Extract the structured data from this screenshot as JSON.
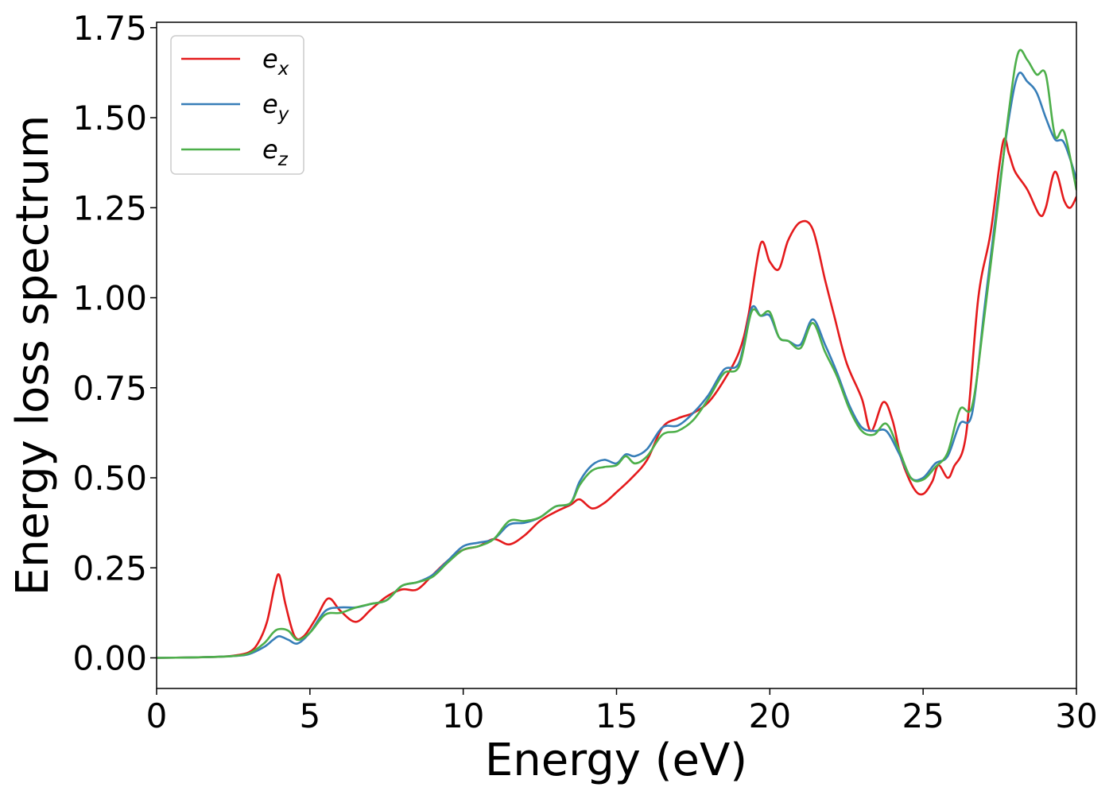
{
  "chart_data": {
    "type": "line",
    "xlabel": "Energy (eV)",
    "ylabel": "Energy loss spectrum",
    "xlim": [
      0,
      30
    ],
    "ylim": [
      -0.085,
      1.765
    ],
    "xticks": [
      0,
      5,
      10,
      15,
      20,
      25,
      30
    ],
    "yticks": [
      0.0,
      0.25,
      0.5,
      0.75,
      1.0,
      1.25,
      1.5,
      1.75
    ],
    "xtick_labels": [
      "0",
      "5",
      "10",
      "15",
      "20",
      "25",
      "30"
    ],
    "ytick_labels": [
      "0.00",
      "0.25",
      "0.50",
      "0.75",
      "1.00",
      "1.25",
      "1.50",
      "1.75"
    ],
    "grid": false,
    "legend_position": "top-left",
    "series": [
      {
        "name": "e_x",
        "label_base": "e",
        "label_sub": "x",
        "color": "#e41a1c",
        "x": [
          0,
          1,
          2,
          2.5,
          3,
          3.3,
          3.6,
          3.85,
          4.0,
          4.2,
          4.5,
          4.8,
          5.2,
          5.6,
          6.0,
          6.5,
          7.0,
          7.5,
          8.0,
          8.5,
          9.0,
          9.5,
          10.0,
          10.5,
          11.0,
          11.5,
          12.0,
          12.5,
          13.0,
          13.5,
          13.8,
          14.2,
          14.6,
          15.0,
          15.5,
          16.0,
          16.5,
          17.0,
          17.5,
          18.0,
          18.5,
          19.0,
          19.3,
          19.7,
          20.0,
          20.3,
          20.6,
          21.0,
          21.4,
          21.8,
          22.1,
          22.5,
          23.0,
          23.3,
          23.7,
          24.0,
          24.3,
          24.7,
          25.0,
          25.3,
          25.5,
          25.8,
          26.0,
          26.4,
          26.8,
          27.2,
          27.6,
          27.8,
          28.0,
          28.4,
          28.8,
          29.0,
          29.3,
          29.6,
          29.8,
          30.0
        ],
        "y": [
          0.0,
          0.001,
          0.003,
          0.006,
          0.015,
          0.04,
          0.1,
          0.2,
          0.23,
          0.15,
          0.06,
          0.06,
          0.11,
          0.165,
          0.13,
          0.1,
          0.135,
          0.17,
          0.19,
          0.19,
          0.23,
          0.27,
          0.3,
          0.31,
          0.33,
          0.315,
          0.34,
          0.38,
          0.405,
          0.425,
          0.44,
          0.415,
          0.43,
          0.46,
          0.5,
          0.55,
          0.64,
          0.665,
          0.68,
          0.71,
          0.77,
          0.85,
          0.95,
          1.15,
          1.1,
          1.08,
          1.16,
          1.21,
          1.19,
          1.05,
          0.95,
          0.82,
          0.72,
          0.63,
          0.71,
          0.66,
          0.55,
          0.47,
          0.455,
          0.49,
          0.535,
          0.5,
          0.53,
          0.62,
          1.0,
          1.18,
          1.43,
          1.4,
          1.35,
          1.3,
          1.23,
          1.25,
          1.35,
          1.27,
          1.25,
          1.28
        ]
      },
      {
        "name": "e_y",
        "label_base": "e",
        "label_sub": "y",
        "color": "#377eb8",
        "x": [
          0,
          1,
          2,
          2.5,
          3,
          3.5,
          3.8,
          4.0,
          4.3,
          4.6,
          5.0,
          5.5,
          6.0,
          6.5,
          7.0,
          7.5,
          8.0,
          8.5,
          9.0,
          9.5,
          10.0,
          10.5,
          11.0,
          11.5,
          12.0,
          12.5,
          13.0,
          13.5,
          13.8,
          14.2,
          14.6,
          15.0,
          15.3,
          15.6,
          16.0,
          16.5,
          17.0,
          17.5,
          18.0,
          18.5,
          19.0,
          19.4,
          19.7,
          20.0,
          20.3,
          20.6,
          21.0,
          21.4,
          21.8,
          22.2,
          22.6,
          23.0,
          23.4,
          23.8,
          24.2,
          24.6,
          25.0,
          25.4,
          25.8,
          26.2,
          26.6,
          27.0,
          27.4,
          27.8,
          28.1,
          28.4,
          28.7,
          29.0,
          29.3,
          29.6,
          30.0
        ],
        "y": [
          0.0,
          0.001,
          0.003,
          0.005,
          0.01,
          0.03,
          0.05,
          0.06,
          0.05,
          0.04,
          0.07,
          0.13,
          0.14,
          0.14,
          0.15,
          0.16,
          0.2,
          0.21,
          0.23,
          0.27,
          0.31,
          0.32,
          0.33,
          0.37,
          0.375,
          0.39,
          0.42,
          0.43,
          0.49,
          0.535,
          0.55,
          0.54,
          0.565,
          0.56,
          0.58,
          0.64,
          0.645,
          0.68,
          0.73,
          0.8,
          0.82,
          0.97,
          0.95,
          0.95,
          0.89,
          0.88,
          0.87,
          0.94,
          0.87,
          0.79,
          0.7,
          0.64,
          0.63,
          0.63,
          0.57,
          0.5,
          0.5,
          0.54,
          0.56,
          0.65,
          0.68,
          0.97,
          1.25,
          1.5,
          1.62,
          1.6,
          1.57,
          1.5,
          1.44,
          1.43,
          1.33
        ]
      },
      {
        "name": "e_z",
        "label_base": "e",
        "label_sub": "z",
        "color": "#4daf4a",
        "x": [
          0,
          1,
          2,
          2.5,
          3,
          3.5,
          3.8,
          4.0,
          4.3,
          4.6,
          5.0,
          5.5,
          6.0,
          6.5,
          7.0,
          7.5,
          8.0,
          8.5,
          9.0,
          9.5,
          10.0,
          10.5,
          11.0,
          11.5,
          12.0,
          12.5,
          13.0,
          13.5,
          13.8,
          14.2,
          14.6,
          15.0,
          15.3,
          15.6,
          16.0,
          16.5,
          17.0,
          17.5,
          18.0,
          18.5,
          19.0,
          19.4,
          19.7,
          20.0,
          20.3,
          20.6,
          21.0,
          21.4,
          21.8,
          22.2,
          22.6,
          23.0,
          23.4,
          23.8,
          24.2,
          24.6,
          25.0,
          25.4,
          25.8,
          26.2,
          26.6,
          27.0,
          27.4,
          27.8,
          28.1,
          28.4,
          28.7,
          29.0,
          29.3,
          29.6,
          30.0
        ],
        "y": [
          0.0,
          0.001,
          0.003,
          0.005,
          0.012,
          0.04,
          0.07,
          0.08,
          0.075,
          0.05,
          0.07,
          0.12,
          0.125,
          0.14,
          0.15,
          0.16,
          0.2,
          0.21,
          0.225,
          0.265,
          0.3,
          0.31,
          0.33,
          0.38,
          0.38,
          0.39,
          0.42,
          0.43,
          0.48,
          0.52,
          0.53,
          0.535,
          0.56,
          0.54,
          0.56,
          0.62,
          0.63,
          0.66,
          0.72,
          0.79,
          0.81,
          0.96,
          0.95,
          0.96,
          0.89,
          0.88,
          0.86,
          0.93,
          0.85,
          0.78,
          0.69,
          0.63,
          0.62,
          0.65,
          0.58,
          0.5,
          0.495,
          0.53,
          0.57,
          0.69,
          0.7,
          0.95,
          1.23,
          1.52,
          1.68,
          1.66,
          1.62,
          1.62,
          1.45,
          1.46,
          1.3
        ]
      }
    ]
  }
}
